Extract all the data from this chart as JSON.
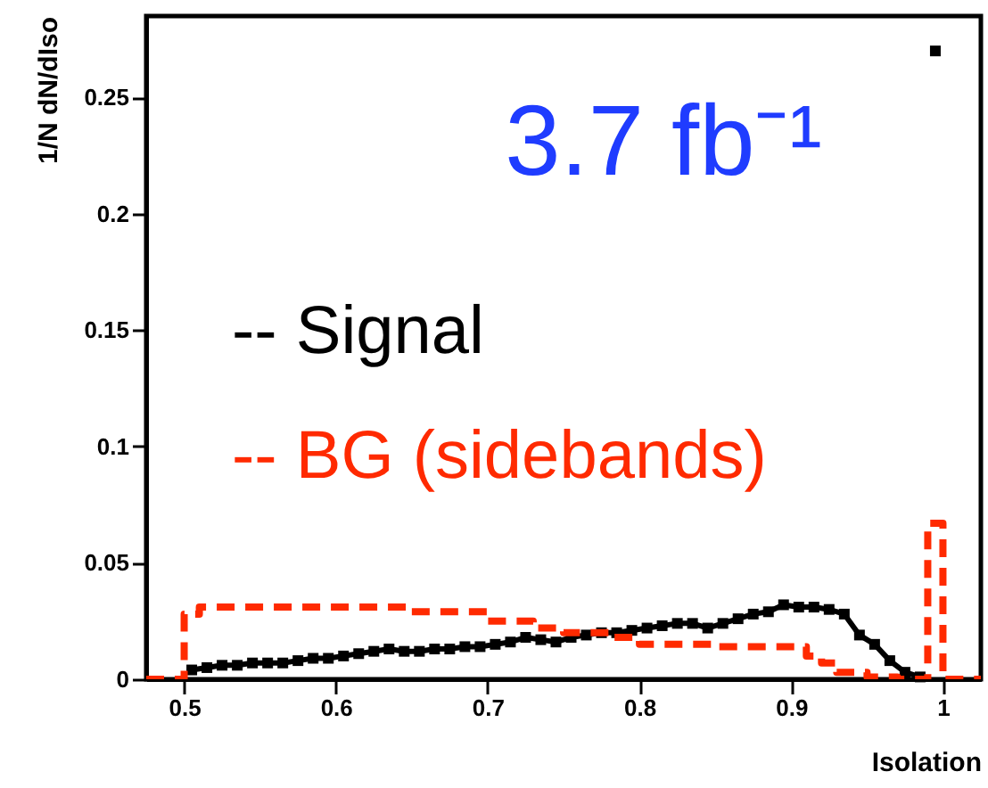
{
  "chart_data": {
    "type": "line",
    "xlabel": "Isolation",
    "ylabel": "1/N dN/dIso",
    "xlim": [
      0.475,
      1.025
    ],
    "xticks": [
      0.5,
      0.6,
      0.7,
      0.8,
      0.9,
      1
    ],
    "ylim": [
      0,
      0.285
    ],
    "yticks": [
      0,
      0.05,
      0.1,
      0.15,
      0.2,
      0.25
    ],
    "annotations": [
      "3.7 fb⁻¹"
    ],
    "series": [
      {
        "name": "-- Signal",
        "marker": "square",
        "line_style": "solid",
        "color": "#000000",
        "x": [
          0.505,
          0.515,
          0.525,
          0.535,
          0.545,
          0.555,
          0.565,
          0.575,
          0.585,
          0.595,
          0.605,
          0.615,
          0.625,
          0.635,
          0.645,
          0.655,
          0.665,
          0.675,
          0.685,
          0.695,
          0.705,
          0.715,
          0.725,
          0.735,
          0.745,
          0.755,
          0.765,
          0.775,
          0.785,
          0.795,
          0.805,
          0.815,
          0.825,
          0.835,
          0.845,
          0.855,
          0.865,
          0.875,
          0.885,
          0.895,
          0.905,
          0.915,
          0.925,
          0.935,
          0.945,
          0.955,
          0.965,
          0.975,
          0.985,
          0.99,
          0.995
        ],
        "values": [
          0.004,
          0.005,
          0.006,
          0.006,
          0.007,
          0.007,
          0.007,
          0.008,
          0.009,
          0.009,
          0.01,
          0.011,
          0.012,
          0.013,
          0.012,
          0.012,
          0.013,
          0.013,
          0.014,
          0.014,
          0.015,
          0.016,
          0.018,
          0.017,
          0.016,
          0.018,
          0.019,
          0.02,
          0.02,
          0.021,
          0.022,
          0.023,
          0.024,
          0.024,
          0.022,
          0.024,
          0.026,
          0.028,
          0.029,
          0.032,
          0.031,
          0.031,
          0.03,
          0.028,
          0.019,
          0.015,
          0.008,
          0.003,
          0.001,
          null,
          0.27
        ]
      },
      {
        "name": "-- BG (sidebands)",
        "type": "step",
        "line_style": "dashed",
        "color": "#ff2a00",
        "x": [
          0.475,
          0.5,
          0.51,
          0.65,
          0.7,
          0.73,
          0.75,
          0.78,
          0.8,
          0.85,
          0.91,
          0.92,
          0.93,
          0.95,
          0.97,
          0.99,
          1.0,
          1.025
        ],
        "values": [
          0,
          0.028,
          0.031,
          0.029,
          0.025,
          0.022,
          0.02,
          0.018,
          0.015,
          0.014,
          0.01,
          0.007,
          0.003,
          0.001,
          0,
          0.067,
          0,
          0
        ]
      }
    ]
  }
}
